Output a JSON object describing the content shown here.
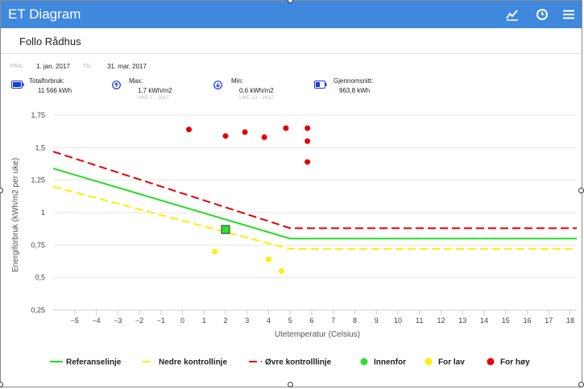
{
  "app": {
    "title": "ET Diagram"
  },
  "page": {
    "title": "Follo Rådhus"
  },
  "period": {
    "from_label": "FRA:",
    "from_value": "1. jan. 2017",
    "to_label": "TIL:",
    "to_value": "31. mar. 2017"
  },
  "stats": {
    "total": {
      "label": "Totalforbruk:",
      "value": "11 566 kWh"
    },
    "max": {
      "label": "Max:",
      "value": "1,7 kWh/m2",
      "sub": "UKE 7 - 2017"
    },
    "min": {
      "label": "Min:",
      "value": "0,6 kWh/m2",
      "sub": "UKE 13 - 2017"
    },
    "avg": {
      "label": "Gjennomsnitt:",
      "value": "963,8 kWh"
    }
  },
  "icons": [
    "chart-line-icon",
    "clock-icon",
    "menu-icon",
    "battery-full-icon",
    "arrow-up-circle-icon",
    "arrow-down-circle-icon",
    "battery-half-icon"
  ],
  "colors": {
    "header": "#3f88de",
    "reference": "#22dd22",
    "lower": "#ffee00",
    "upper": "#e60000",
    "inside": "#33dd33",
    "low": "#ffee00",
    "high": "#e60000"
  },
  "chart_data": {
    "type": "scatter",
    "xlabel": "Utetemperatur (Celsius)",
    "ylabel": "Energiforbruk (kWh/m2 per uke)",
    "xlim": [
      -6,
      18.3
    ],
    "ylim": [
      0.25,
      1.75
    ],
    "x_ticks": [
      "−5",
      "−4",
      "−3",
      "−2",
      "−1",
      "0",
      "1",
      "2",
      "3",
      "4",
      "5",
      "6",
      "7",
      "8",
      "9",
      "10",
      "11",
      "12",
      "13",
      "14",
      "15",
      "16",
      "17",
      "18"
    ],
    "y_ticks": [
      "1,75",
      "1,5",
      "1,25",
      "1",
      "0,75",
      "0,5",
      "0,25"
    ],
    "lines": [
      {
        "name": "Referanselinje",
        "x": [
          -6,
          5,
          18.3
        ],
        "y": [
          1.34,
          0.8,
          0.8
        ],
        "color": "#22dd22",
        "dash": false
      },
      {
        "name": "Nedre kontrollinje",
        "x": [
          -6,
          5,
          18.3
        ],
        "y": [
          1.2,
          0.72,
          0.72
        ],
        "color": "#ffee00",
        "dash": true
      },
      {
        "name": "Øvre kontrolllinje",
        "x": [
          -6,
          5,
          18.3
        ],
        "y": [
          1.47,
          0.88,
          0.88
        ],
        "color": "#e60000",
        "dash": true
      }
    ],
    "series": [
      {
        "name": "Innenfor",
        "points": [
          [
            2.0,
            0.87
          ]
        ],
        "color": "#33dd33",
        "marker": "square"
      },
      {
        "name": "For lav",
        "points": [
          [
            1.5,
            0.7
          ],
          [
            4.0,
            0.64
          ],
          [
            4.6,
            0.55
          ]
        ],
        "color": "#ffee00",
        "marker": "circle"
      },
      {
        "name": "For høy",
        "points": [
          [
            0.3,
            1.64
          ],
          [
            2.0,
            1.59
          ],
          [
            2.9,
            1.62
          ],
          [
            3.8,
            1.58
          ],
          [
            4.8,
            1.65
          ],
          [
            5.8,
            1.65
          ],
          [
            5.8,
            1.55
          ],
          [
            5.8,
            1.39
          ]
        ],
        "color": "#e60000",
        "marker": "circle"
      }
    ],
    "legend": [
      {
        "label": "Referanselinje",
        "kind": "line",
        "color": "#22dd22"
      },
      {
        "label": "Nedre kontrollinje",
        "kind": "dashed",
        "color": "#ffee00"
      },
      {
        "label": "Øvre kontrolllinje",
        "kind": "dashed",
        "color": "#e60000"
      },
      {
        "label": "Innenfor",
        "kind": "dot",
        "color": "#33dd33"
      },
      {
        "label": "For lav",
        "kind": "dot",
        "color": "#ffee00"
      },
      {
        "label": "For høy",
        "kind": "dot",
        "color": "#e60000"
      }
    ],
    "legend_position": "bottom",
    "grid": true
  }
}
